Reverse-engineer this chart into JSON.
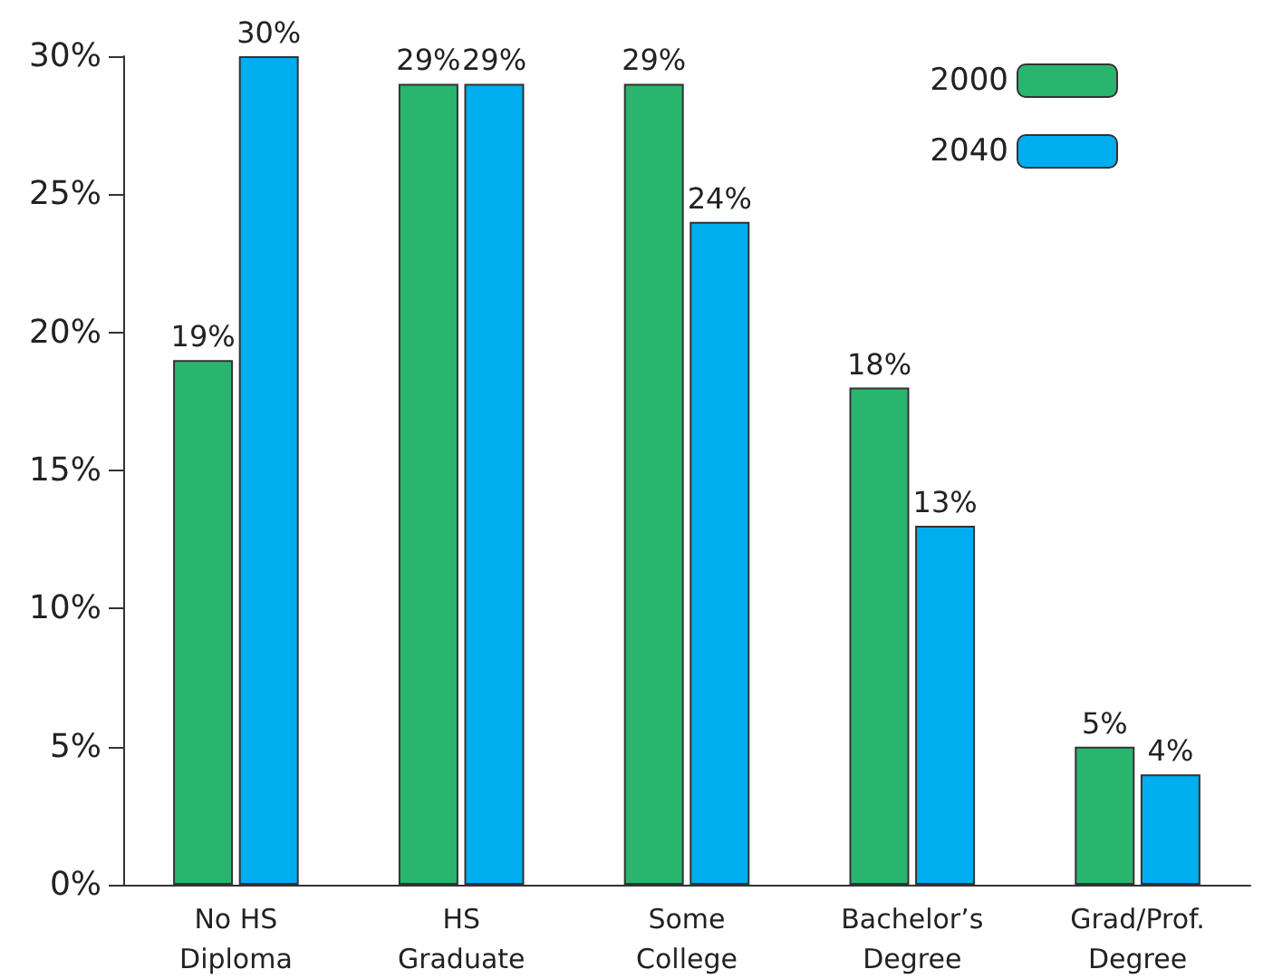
{
  "chart_data": {
    "type": "bar",
    "categories": [
      "No HS Diploma",
      "HS Graduate",
      "Some College",
      "Bachelor’s Degree",
      "Grad/Prof. Degree"
    ],
    "series": [
      {
        "name": "2000",
        "color": "#2ab56f",
        "values": [
          19,
          29,
          29,
          18,
          5
        ],
        "value_labels": [
          "19%",
          "29%",
          "29%",
          "18%",
          "5%"
        ]
      },
      {
        "name": "2040",
        "color": "#00aeef",
        "values": [
          30,
          29,
          24,
          13,
          4
        ],
        "value_labels": [
          "30%",
          "29%",
          "24%",
          "13%",
          "4%"
        ]
      }
    ],
    "ylim": [
      0,
      30
    ],
    "yticks": [
      {
        "value": 0,
        "label": "0%"
      },
      {
        "value": 5,
        "label": "5%"
      },
      {
        "value": 10,
        "label": "10%"
      },
      {
        "value": 15,
        "label": "15%"
      },
      {
        "value": 20,
        "label": "20%"
      },
      {
        "value": 25,
        "label": "25%"
      },
      {
        "value": 30,
        "label": "30%"
      }
    ],
    "grid": false,
    "legend": "top right"
  }
}
